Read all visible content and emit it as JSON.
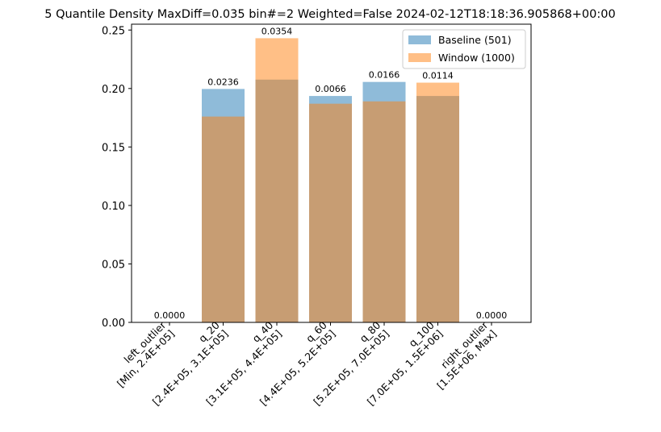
{
  "chart_data": {
    "type": "bar",
    "title": "5 Quantile Density MaxDiff=0.035 bin#=2 Weighted=False 2024-02-12T18:18:36.905868+00:00",
    "categories": [
      "left_outlier\n[Min, 2.4E+05]",
      "q_20\n[2.4E+05, 3.1E+05]",
      "q_40\n[3.1E+05, 4.4E+05]",
      "q_60\n[4.4E+05, 5.2E+05]",
      "q_80\n[5.2E+05, 7.0E+05]",
      "q_100\n[7.0E+05, 1.5E+06]",
      "right_outlier\n[1.5E+06, Max]"
    ],
    "series": [
      {
        "name": "Baseline (501)",
        "color": "#1f77b4",
        "alpha": 0.5,
        "values": [
          0.0,
          0.1996,
          0.2076,
          0.1936,
          0.2056,
          0.1936,
          0.0
        ]
      },
      {
        "name": "Window (1000)",
        "color": "#ff7f0e",
        "alpha": 0.5,
        "values": [
          0.0,
          0.176,
          0.243,
          0.187,
          0.189,
          0.205,
          0.0
        ]
      }
    ],
    "annotations": [
      "0.0000",
      "0.0236",
      "0.0354",
      "0.0066",
      "0.0166",
      "0.0114",
      "0.0000"
    ],
    "ylim": [
      0,
      0.255
    ],
    "yticks": [
      0.0,
      0.05,
      0.1,
      0.15,
      0.2,
      0.25
    ],
    "ytick_labels": [
      "0.00",
      "0.05",
      "0.10",
      "0.15",
      "0.20",
      "0.25"
    ],
    "xlabel": "",
    "ylabel": "",
    "legend_position": "top-right",
    "grid": false
  }
}
